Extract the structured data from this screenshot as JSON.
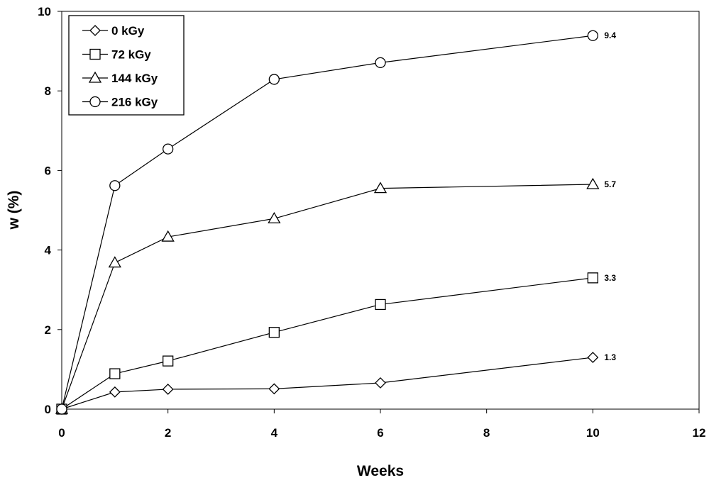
{
  "chart_data": {
    "type": "line",
    "xlabel": "Weeks",
    "ylabel": "w (%)",
    "xlim": [
      0,
      12
    ],
    "ylim": [
      0,
      10
    ],
    "xticks": [
      "0",
      "2",
      "4",
      "6",
      "8",
      "10",
      "12"
    ],
    "yticks": [
      "0",
      "2",
      "4",
      "6",
      "8",
      "10"
    ],
    "grid": false,
    "legend_position": "top-left",
    "x": [
      0,
      1,
      2,
      4,
      6,
      10
    ],
    "series": [
      {
        "name": "0 kGy",
        "marker": "diamond",
        "values": [
          0,
          0.43,
          0.5,
          0.51,
          0.66,
          1.3
        ],
        "end_label": "1.3"
      },
      {
        "name": "72 kGy",
        "marker": "square",
        "values": [
          0,
          0.89,
          1.21,
          1.93,
          2.63,
          3.3
        ],
        "end_label": "3.3"
      },
      {
        "name": "144 kGy",
        "marker": "triangle",
        "values": [
          0,
          3.68,
          4.33,
          4.79,
          5.55,
          5.65
        ],
        "end_label": "5.7"
      },
      {
        "name": "216 kGy",
        "marker": "circle",
        "values": [
          0,
          5.62,
          6.54,
          8.29,
          8.71,
          9.39
        ],
        "end_label": "9.4"
      }
    ]
  }
}
